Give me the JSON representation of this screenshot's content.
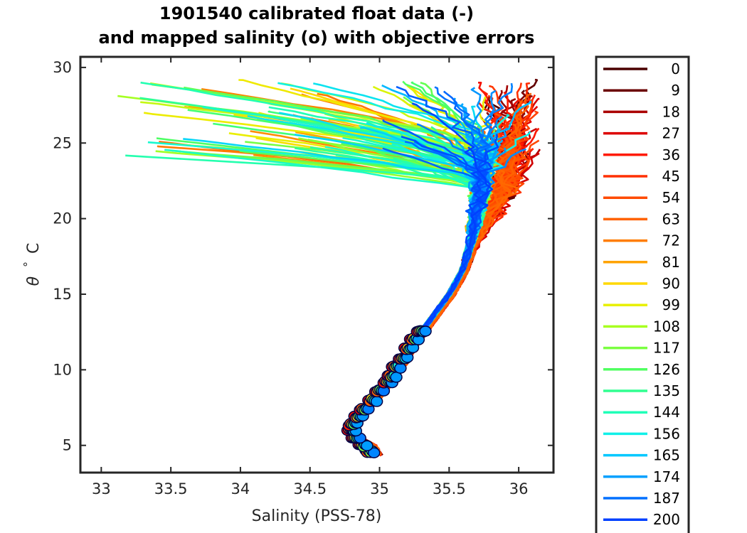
{
  "chart_data": {
    "type": "line",
    "title_line1": "1901540 calibrated float data (-)",
    "title_line2": "and mapped salinity (o) with objective errors",
    "xlabel": "Salinity (PSS-78)",
    "ylabel_symbol": "θ",
    "ylabel_degree": "°",
    "ylabel_unit": "C",
    "xlim": [
      32.85,
      36.25
    ],
    "ylim": [
      3.2,
      30.7
    ],
    "x_ticks": [
      33,
      33.5,
      34,
      34.5,
      35,
      35.5,
      36
    ],
    "x_tick_labels": [
      "33",
      "33.5",
      "34",
      "34.5",
      "35",
      "35.5",
      "36"
    ],
    "y_ticks": [
      5,
      10,
      15,
      20,
      25,
      30
    ],
    "y_tick_labels": [
      "5",
      "10",
      "15",
      "20",
      "25",
      "30"
    ],
    "colormap": "jet",
    "legend_entries": [
      "0",
      "9",
      "18",
      "27",
      "36",
      "45",
      "54",
      "63",
      "72",
      "81",
      "90",
      "99",
      "108",
      "117",
      "126",
      "135",
      "144",
      "156",
      "165",
      "174",
      "187",
      "200"
    ],
    "legend_colors": [
      "#4a0000",
      "#6b0000",
      "#aa0000",
      "#dd0000",
      "#ff1a00",
      "#ff3000",
      "#ff4a00",
      "#ff6200",
      "#ff7d00",
      "#ffa300",
      "#ffd800",
      "#e8f000",
      "#a8ff20",
      "#7aff40",
      "#50ff60",
      "#30ff90",
      "#20ffb8",
      "#10f0e8",
      "#00c8ff",
      "#00a0ff",
      "#0070ff",
      "#0040ff"
    ],
    "legend_location": "outside-right",
    "grid": false,
    "series_note": "approximately 200 profiles, one per float cycle, colored by cycle number",
    "deep_water_mass": {
      "theta": [
        4.3,
        5.0,
        5.5,
        6.0,
        6.5,
        7.0,
        7.5,
        8.0,
        8.5,
        9.0,
        9.5,
        10.0,
        10.5,
        11.0,
        11.5,
        12.0,
        12.5,
        13.0,
        13.5,
        14.0,
        14.5,
        15.0,
        15.5,
        16.0,
        16.5,
        17.0,
        17.5,
        18.0,
        18.5
      ],
      "salinity": [
        34.98,
        34.93,
        34.83,
        34.79,
        34.8,
        34.85,
        34.9,
        34.95,
        35.0,
        35.04,
        35.08,
        35.12,
        35.16,
        35.19,
        35.22,
        35.26,
        35.3,
        35.34,
        35.38,
        35.42,
        35.46,
        35.5,
        35.53,
        35.56,
        35.59,
        35.61,
        35.63,
        35.65,
        35.67
      ]
    },
    "mapped_points": {
      "theta": [
        4.6,
        5.0,
        5.5,
        6.0,
        6.4,
        6.9,
        7.4,
        8.0,
        8.6,
        9.2,
        9.6,
        10.2,
        10.8,
        11.4,
        12.0,
        12.6
      ],
      "salinity": [
        34.93,
        34.88,
        34.83,
        34.8,
        34.81,
        34.85,
        34.89,
        34.95,
        35.0,
        35.06,
        35.09,
        35.12,
        35.17,
        35.21,
        35.25,
        35.3
      ]
    }
  }
}
